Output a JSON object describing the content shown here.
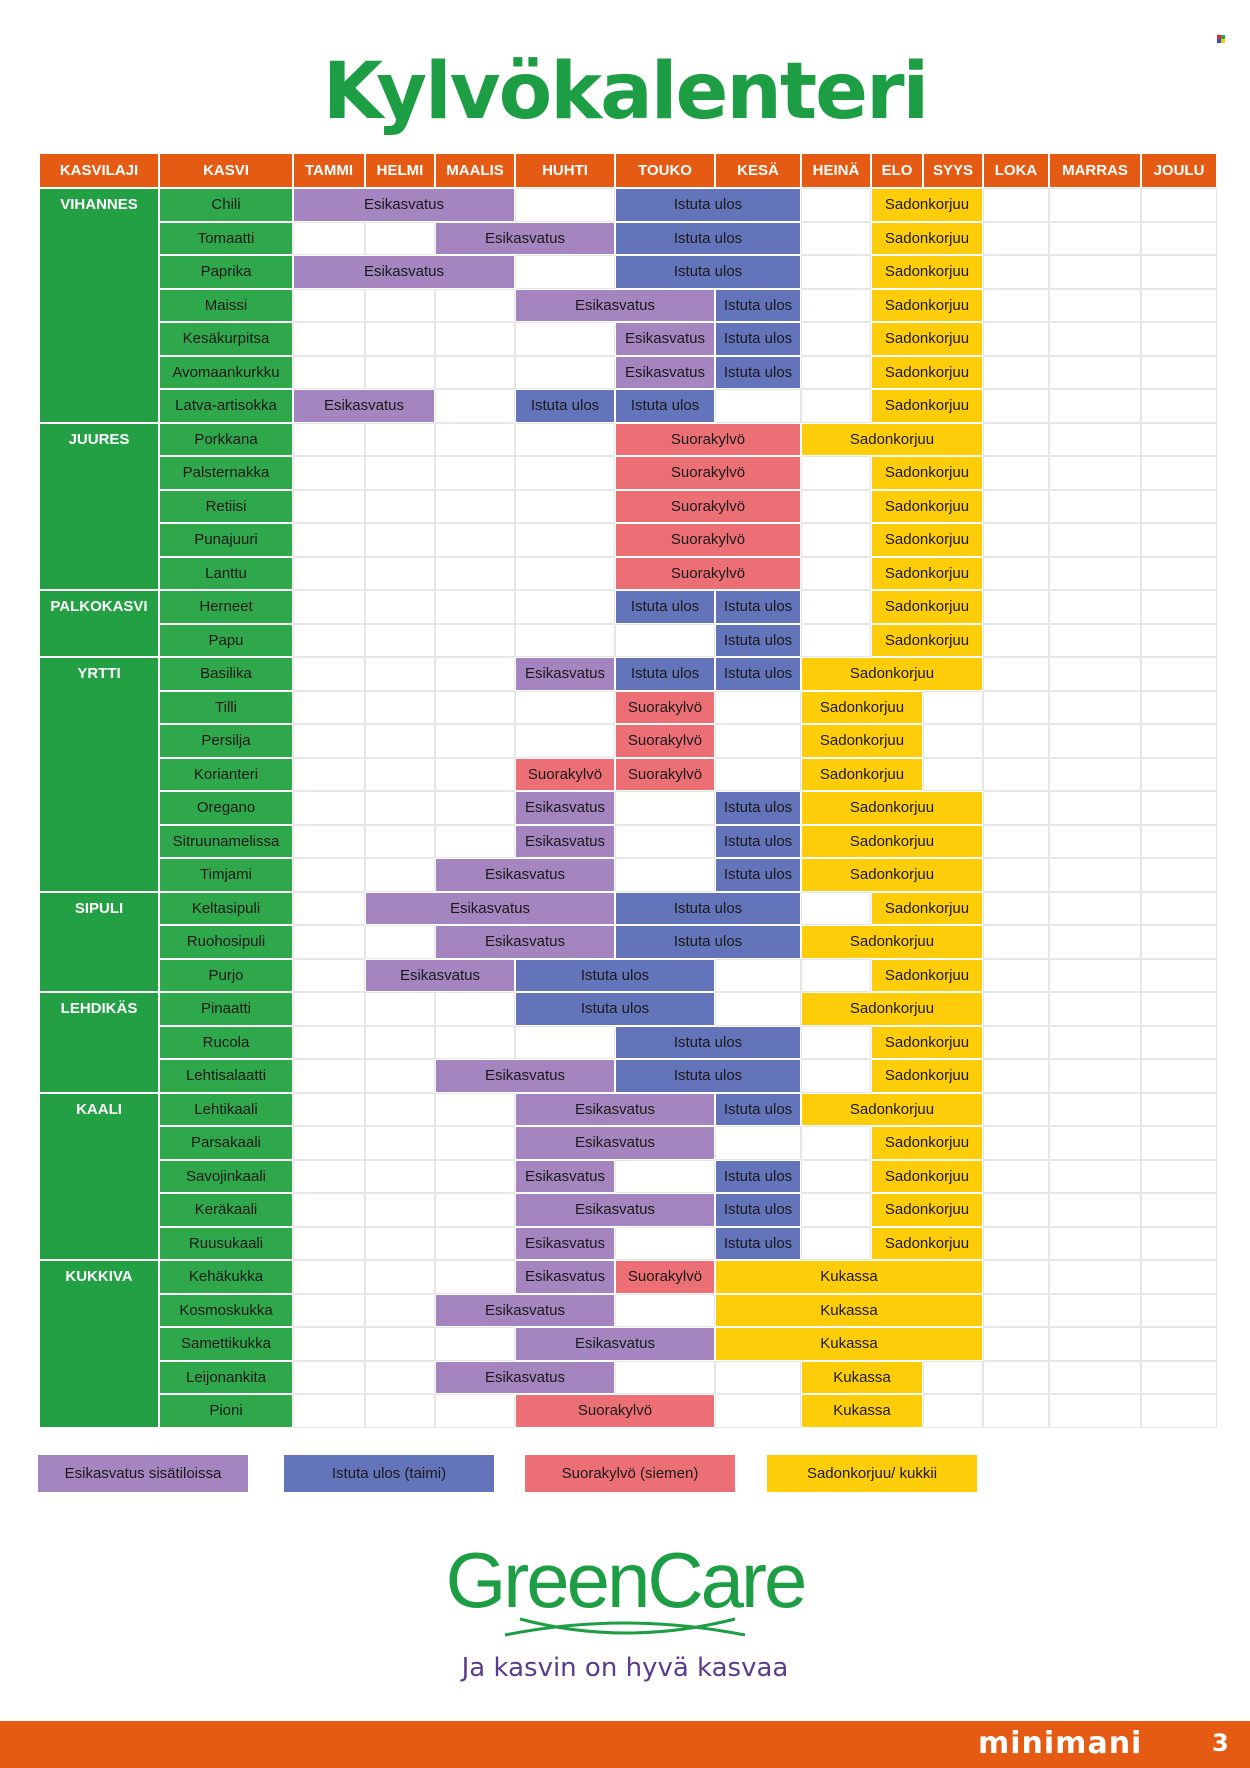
{
  "title": "Kylvökalenteri",
  "colors": {
    "Esikasvatus": "#a585bf",
    "Istuta ulos": "#6474bb",
    "Suorakylvö": "#ec6f76",
    "Sadonkorjuu": "#fecd09",
    "Kukassa": "#fecd09"
  },
  "headers": [
    "KASVILAJI",
    "KASVI",
    "TAMMI",
    "HELMI",
    "MAALIS",
    "HUHTI",
    "TOUKO",
    "KESÄ",
    "HEINÄ",
    "ELO",
    "SYYS",
    "LOKA",
    "MARRAS",
    "JOULU"
  ],
  "groups": [
    {
      "name": "VIHANNES",
      "plants": [
        {
          "name": "Chili",
          "bars": [
            {
              "start": 0,
              "span": 3,
              "label": "Esikasvatus"
            },
            {
              "start": 4,
              "span": 2,
              "label": "Istuta ulos"
            },
            {
              "start": 7,
              "span": 1,
              "label": "Sadonkorjuu",
              "wide": true
            }
          ]
        },
        {
          "name": "Tomaatti",
          "bars": [
            {
              "start": 2,
              "span": 2,
              "label": "Esikasvatus"
            },
            {
              "start": 4,
              "span": 2,
              "label": "Istuta ulos"
            },
            {
              "start": 7,
              "span": 1,
              "label": "Sadonkorjuu",
              "wide": true
            }
          ]
        },
        {
          "name": "Paprika",
          "bars": [
            {
              "start": 0,
              "span": 3,
              "label": "Esikasvatus"
            },
            {
              "start": 4,
              "span": 2,
              "label": "Istuta ulos"
            },
            {
              "start": 7,
              "span": 1,
              "label": "Sadonkorjuu",
              "wide": true
            }
          ]
        },
        {
          "name": "Maissi",
          "bars": [
            {
              "start": 3,
              "span": 2,
              "label": "Esikasvatus"
            },
            {
              "start": 5,
              "span": 1,
              "label": "Istuta ulos"
            },
            {
              "start": 7,
              "span": 1,
              "label": "Sadonkorjuu",
              "wide": true
            }
          ]
        },
        {
          "name": "Kesäkurpitsa",
          "bars": [
            {
              "start": 4,
              "span": 1,
              "label": "Esikasvatus"
            },
            {
              "start": 5,
              "span": 1,
              "label": "Istuta ulos"
            },
            {
              "start": 7,
              "span": 1,
              "label": "Sadonkorjuu",
              "wide": true
            }
          ]
        },
        {
          "name": "Avomaankurkku",
          "bars": [
            {
              "start": 4,
              "span": 1,
              "label": "Esikasvatus"
            },
            {
              "start": 5,
              "span": 1,
              "label": "Istuta ulos"
            },
            {
              "start": 7,
              "span": 1,
              "label": "Sadonkorjuu",
              "wide": true
            }
          ]
        },
        {
          "name": "Latva-artisokka",
          "bars": [
            {
              "start": 0,
              "span": 2,
              "label": "Esikasvatus"
            },
            {
              "start": 3,
              "span": 1,
              "label": "Istuta ulos"
            },
            {
              "start": 4,
              "span": 1,
              "label": "Istuta ulos"
            },
            {
              "start": 7,
              "span": 1,
              "label": "Sadonkorjuu",
              "wide": true
            }
          ]
        }
      ]
    },
    {
      "name": "JUURES",
      "plants": [
        {
          "name": "Porkkana",
          "bars": [
            {
              "start": 4,
              "span": 2,
              "label": "Suorakylvö"
            },
            {
              "start": 6,
              "span": 3,
              "label": "Sadonkorjuu"
            }
          ]
        },
        {
          "name": "Palsternakka",
          "bars": [
            {
              "start": 4,
              "span": 2,
              "label": "Suorakylvö"
            },
            {
              "start": 7,
              "span": 1,
              "label": "Sadonkorjuu",
              "wide": true
            }
          ]
        },
        {
          "name": "Retiisi",
          "bars": [
            {
              "start": 4,
              "span": 2,
              "label": "Suorakylvö"
            },
            {
              "start": 7,
              "span": 1,
              "label": "Sadonkorjuu",
              "wide": true
            }
          ]
        },
        {
          "name": "Punajuuri",
          "bars": [
            {
              "start": 4,
              "span": 2,
              "label": "Suorakylvö"
            },
            {
              "start": 7,
              "span": 1,
              "label": "Sadonkorjuu",
              "wide": true
            }
          ]
        },
        {
          "name": "Lanttu",
          "bars": [
            {
              "start": 4,
              "span": 2,
              "label": "Suorakylvö"
            },
            {
              "start": 7,
              "span": 1,
              "label": "Sadonkorjuu",
              "wide": true
            }
          ]
        }
      ]
    },
    {
      "name": "PALKOKASVI",
      "plants": [
        {
          "name": "Herneet",
          "bars": [
            {
              "start": 4,
              "span": 1,
              "label": "Istuta ulos"
            },
            {
              "start": 5,
              "span": 1,
              "label": "Istuta ulos"
            },
            {
              "start": 7,
              "span": 1,
              "label": "Sadonkorjuu",
              "wide": true
            }
          ]
        },
        {
          "name": "Papu",
          "bars": [
            {
              "start": 5,
              "span": 1,
              "label": "Istuta ulos"
            },
            {
              "start": 7,
              "span": 1,
              "label": "Sadonkorjuu",
              "wide": true
            }
          ]
        }
      ]
    },
    {
      "name": "YRTTI",
      "plants": [
        {
          "name": "Basilika",
          "bars": [
            {
              "start": 3,
              "span": 1,
              "label": "Esikasvatus"
            },
            {
              "start": 4,
              "span": 1,
              "label": "Istuta ulos"
            },
            {
              "start": 5,
              "span": 1,
              "label": "Istuta ulos"
            },
            {
              "start": 6,
              "span": 3,
              "label": "Sadonkorjuu"
            }
          ]
        },
        {
          "name": "Tilli",
          "bars": [
            {
              "start": 4,
              "span": 1,
              "label": "Suorakylvö"
            },
            {
              "start": 6,
              "span": 1,
              "label": "Sadonkorjuu",
              "wide": true
            }
          ]
        },
        {
          "name": "Persilja",
          "bars": [
            {
              "start": 4,
              "span": 1,
              "label": "Suorakylvö"
            },
            {
              "start": 6,
              "span": 1,
              "label": "Sadonkorjuu",
              "wide": true
            }
          ]
        },
        {
          "name": "Korianteri",
          "bars": [
            {
              "start": 3,
              "span": 1,
              "label": "Suorakylvö"
            },
            {
              "start": 4,
              "span": 1,
              "label": "Suorakylvö"
            },
            {
              "start": 6,
              "span": 1,
              "label": "Sadonkorjuu",
              "wide": true
            }
          ]
        },
        {
          "name": "Oregano",
          "bars": [
            {
              "start": 3,
              "span": 1,
              "label": "Esikasvatus"
            },
            {
              "start": 5,
              "span": 1,
              "label": "Istuta ulos"
            },
            {
              "start": 6,
              "span": 3,
              "label": "Sadonkorjuu"
            }
          ]
        },
        {
          "name": "Sitruunamelissa",
          "bars": [
            {
              "start": 3,
              "span": 1,
              "label": "Esikasvatus"
            },
            {
              "start": 5,
              "span": 1,
              "label": "Istuta ulos"
            },
            {
              "start": 6,
              "span": 3,
              "label": "Sadonkorjuu"
            }
          ]
        },
        {
          "name": "Timjami",
          "bars": [
            {
              "start": 2,
              "span": 2,
              "label": "Esikasvatus"
            },
            {
              "start": 5,
              "span": 1,
              "label": "Istuta ulos"
            },
            {
              "start": 6,
              "span": 3,
              "label": "Sadonkorjuu"
            }
          ]
        }
      ]
    },
    {
      "name": "SIPULI",
      "plants": [
        {
          "name": "Keltasipuli",
          "bars": [
            {
              "start": 1,
              "span": 3,
              "label": "Esikasvatus"
            },
            {
              "start": 4,
              "span": 2,
              "label": "Istuta ulos"
            },
            {
              "start": 7,
              "span": 1,
              "label": "Sadonkorjuu",
              "wide": true
            }
          ]
        },
        {
          "name": "Ruohosipuli",
          "bars": [
            {
              "start": 2,
              "span": 2,
              "label": "Esikasvatus"
            },
            {
              "start": 4,
              "span": 2,
              "label": "Istuta ulos"
            },
            {
              "start": 6,
              "span": 3,
              "label": "Sadonkorjuu"
            }
          ]
        },
        {
          "name": "Purjo",
          "bars": [
            {
              "start": 1,
              "span": 2,
              "label": "Esikasvatus"
            },
            {
              "start": 3,
              "span": 2,
              "label": "Istuta ulos"
            },
            {
              "start": 7,
              "span": 1,
              "label": "Sadonkorjuu",
              "wide": true
            }
          ]
        }
      ]
    },
    {
      "name": "LEHDIKÄS",
      "plants": [
        {
          "name": "Pinaatti",
          "bars": [
            {
              "start": 3,
              "span": 2,
              "label": "Istuta ulos"
            },
            {
              "start": 6,
              "span": 3,
              "label": "Sadonkorjuu"
            }
          ]
        },
        {
          "name": "Rucola",
          "bars": [
            {
              "start": 4,
              "span": 2,
              "label": "Istuta ulos"
            },
            {
              "start": 7,
              "span": 1,
              "label": "Sadonkorjuu",
              "wide": true
            }
          ]
        },
        {
          "name": "Lehtisalaatti",
          "bars": [
            {
              "start": 2,
              "span": 2,
              "label": "Esikasvatus"
            },
            {
              "start": 4,
              "span": 2,
              "label": "Istuta ulos"
            },
            {
              "start": 7,
              "span": 1,
              "label": "Sadonkorjuu",
              "wide": true
            }
          ]
        }
      ]
    },
    {
      "name": "KAALI",
      "plants": [
        {
          "name": "Lehtikaali",
          "bars": [
            {
              "start": 3,
              "span": 2,
              "label": "Esikasvatus"
            },
            {
              "start": 5,
              "span": 1,
              "label": "Istuta ulos"
            },
            {
              "start": 6,
              "span": 3,
              "label": "Sadonkorjuu"
            }
          ]
        },
        {
          "name": "Parsakaali",
          "bars": [
            {
              "start": 3,
              "span": 2,
              "label": "Esikasvatus"
            },
            {
              "start": 7,
              "span": 2,
              "label": "Sadonkorjuu"
            }
          ]
        },
        {
          "name": "Savojinkaali",
          "bars": [
            {
              "start": 3,
              "span": 1,
              "label": "Esikasvatus"
            },
            {
              "start": 5,
              "span": 1,
              "label": "Istuta ulos"
            },
            {
              "start": 7,
              "span": 2,
              "label": "Sadonkorjuu"
            }
          ]
        },
        {
          "name": "Keräkaali",
          "bars": [
            {
              "start": 3,
              "span": 2,
              "label": "Esikasvatus"
            },
            {
              "start": 5,
              "span": 1,
              "label": "Istuta ulos"
            },
            {
              "start": 7,
              "span": 2,
              "label": "Sadonkorjuu"
            }
          ]
        },
        {
          "name": "Ruusukaali",
          "bars": [
            {
              "start": 3,
              "span": 1,
              "label": "Esikasvatus"
            },
            {
              "start": 5,
              "span": 1,
              "label": "Istuta ulos"
            },
            {
              "start": 7,
              "span": 2,
              "label": "Sadonkorjuu"
            }
          ]
        }
      ]
    },
    {
      "name": "KUKKIVA",
      "plants": [
        {
          "name": "Kehäkukka",
          "bars": [
            {
              "start": 3,
              "span": 1,
              "label": "Esikasvatus"
            },
            {
              "start": 4,
              "span": 1,
              "label": "Suorakylvö"
            },
            {
              "start": 5,
              "span": 4,
              "label": "Kukassa"
            }
          ]
        },
        {
          "name": "Kosmoskukka",
          "bars": [
            {
              "start": 2,
              "span": 2,
              "label": "Esikasvatus"
            },
            {
              "start": 5,
              "span": 4,
              "label": "Kukassa"
            }
          ]
        },
        {
          "name": "Samettikukka",
          "bars": [
            {
              "start": 3,
              "span": 2,
              "label": "Esikasvatus"
            },
            {
              "start": 5,
              "span": 4,
              "label": "Kukassa"
            }
          ]
        },
        {
          "name": "Leijonankita",
          "bars": [
            {
              "start": 2,
              "span": 2,
              "label": "Esikasvatus"
            },
            {
              "start": 6,
              "span": 2,
              "label": "Kukassa"
            }
          ]
        },
        {
          "name": "Pioni",
          "bars": [
            {
              "start": 3,
              "span": 2,
              "label": "Suorakylvö"
            },
            {
              "start": 6,
              "span": 2,
              "label": "Kukassa"
            }
          ]
        }
      ]
    }
  ],
  "legend": [
    {
      "label": "Esikasvatus sisätiloissa",
      "color": "#a585bf"
    },
    {
      "label": "Istuta ulos (taimi)",
      "color": "#6474bb"
    },
    {
      "label": "Suorakylvö (siemen)",
      "color": "#ec6f76"
    },
    {
      "label": "Sadonkorjuu/ kukkii",
      "color": "#fecd09"
    }
  ],
  "logo": {
    "name": "GreenCare",
    "slogan": "Ja kasvin on hyvä kasvaa"
  },
  "footer": {
    "brand": "minimani",
    "page": "3"
  }
}
